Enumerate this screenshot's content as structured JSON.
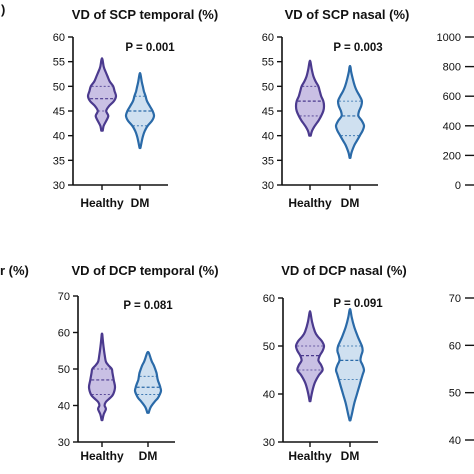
{
  "colors": {
    "healthy_fill": "#c9c0e4",
    "healthy_line": "#4b3a8e",
    "dm_fill": "#cfe0f0",
    "dm_line": "#2a6aa8",
    "axis": "#111111"
  },
  "fragments": {
    "panel_mark_top": ")",
    "left_label_bottom": "r (%)"
  },
  "chart_data": [
    {
      "type": "violin",
      "title": "VD of SCP temporal (%)",
      "annotation": "P = 0.001",
      "categories": [
        "Healthy",
        "DM"
      ],
      "ylim": [
        30,
        60
      ],
      "yticks": [
        30,
        35,
        40,
        45,
        50,
        55,
        60
      ],
      "series": [
        {
          "min": 41,
          "max": 55.5,
          "median": 47.5,
          "q1": 45,
          "q3": 50,
          "profile": [
            [
              41,
              0.05
            ],
            [
              42,
              0.12
            ],
            [
              43,
              0.3
            ],
            [
              44,
              0.45
            ],
            [
              45,
              0.3
            ],
            [
              46,
              0.5
            ],
            [
              47,
              0.85
            ],
            [
              48,
              1.0
            ],
            [
              49,
              0.9
            ],
            [
              50,
              0.8
            ],
            [
              51,
              0.55
            ],
            [
              52,
              0.4
            ],
            [
              53,
              0.25
            ],
            [
              54,
              0.12
            ],
            [
              55.5,
              0.03
            ]
          ]
        },
        {
          "min": 37.5,
          "max": 52.5,
          "median": 45,
          "q1": 42,
          "q3": 48,
          "profile": [
            [
              37.5,
              0.03
            ],
            [
              38.5,
              0.1
            ],
            [
              40,
              0.22
            ],
            [
              41,
              0.35
            ],
            [
              42,
              0.55
            ],
            [
              43,
              0.85
            ],
            [
              44,
              1.0
            ],
            [
              45,
              0.9
            ],
            [
              46,
              0.7
            ],
            [
              47,
              0.5
            ],
            [
              48,
              0.4
            ],
            [
              49,
              0.28
            ],
            [
              50,
              0.2
            ],
            [
              51,
              0.12
            ],
            [
              52.5,
              0.03
            ]
          ]
        }
      ]
    },
    {
      "type": "violin",
      "title": "VD of SCP nasal (%)",
      "annotation": "P = 0.003",
      "categories": [
        "Healthy",
        "DM"
      ],
      "ylim": [
        30,
        60
      ],
      "yticks": [
        30,
        35,
        40,
        45,
        50,
        55,
        60
      ],
      "series": [
        {
          "min": 40,
          "max": 55,
          "median": 47,
          "q1": 44,
          "q3": 50,
          "profile": [
            [
              40,
              0.05
            ],
            [
              41,
              0.15
            ],
            [
              42,
              0.35
            ],
            [
              43,
              0.6
            ],
            [
              44,
              0.8
            ],
            [
              45,
              0.95
            ],
            [
              46,
              1.0
            ],
            [
              47,
              0.95
            ],
            [
              48,
              0.8
            ],
            [
              49,
              0.7
            ],
            [
              50,
              0.6
            ],
            [
              51,
              0.4
            ],
            [
              52,
              0.25
            ],
            [
              53.5,
              0.12
            ],
            [
              55,
              0.03
            ]
          ]
        },
        {
          "min": 35.5,
          "max": 54,
          "median": 44,
          "q1": 40,
          "q3": 47,
          "profile": [
            [
              35.5,
              0.03
            ],
            [
              36.5,
              0.1
            ],
            [
              38,
              0.3
            ],
            [
              39,
              0.5
            ],
            [
              40,
              0.7
            ],
            [
              41,
              0.9
            ],
            [
              42,
              1.0
            ],
            [
              43,
              0.85
            ],
            [
              44,
              0.6
            ],
            [
              45,
              0.65
            ],
            [
              46,
              0.8
            ],
            [
              47,
              0.85
            ],
            [
              48,
              0.7
            ],
            [
              49,
              0.5
            ],
            [
              50,
              0.35
            ],
            [
              51.5,
              0.2
            ],
            [
              53,
              0.08
            ],
            [
              54,
              0.03
            ]
          ]
        }
      ]
    },
    {
      "type": "violin",
      "title": "",
      "annotation": "",
      "categories": [],
      "ylim": [
        0,
        1000
      ],
      "yticks": [
        0,
        200,
        400,
        600,
        800,
        1000
      ],
      "series": []
    },
    {
      "type": "violin",
      "title": "VD of DCP temporal (%)",
      "annotation": "P = 0.081",
      "categories": [
        "Healthy",
        "DM"
      ],
      "ylim": [
        30,
        70
      ],
      "yticks": [
        30,
        40,
        50,
        60,
        70
      ],
      "series": [
        {
          "min": 36,
          "max": 59.5,
          "median": 47,
          "q1": 43,
          "q3": 50,
          "profile": [
            [
              36,
              0.03
            ],
            [
              37.5,
              0.12
            ],
            [
              39,
              0.3
            ],
            [
              40,
              0.2
            ],
            [
              41,
              0.3
            ],
            [
              42,
              0.6
            ],
            [
              43,
              0.85
            ],
            [
              45,
              1.0
            ],
            [
              47,
              0.9
            ],
            [
              49,
              0.8
            ],
            [
              50,
              0.75
            ],
            [
              51,
              0.5
            ],
            [
              52,
              0.3
            ],
            [
              54,
              0.2
            ],
            [
              56,
              0.12
            ],
            [
              58,
              0.06
            ],
            [
              59.5,
              0.02
            ]
          ]
        },
        {
          "min": 38,
          "max": 54.5,
          "median": 45,
          "q1": 43,
          "q3": 48,
          "profile": [
            [
              38,
              0.05
            ],
            [
              39.5,
              0.2
            ],
            [
              41,
              0.5
            ],
            [
              42,
              0.75
            ],
            [
              43,
              0.9
            ],
            [
              44,
              1.0
            ],
            [
              45,
              0.95
            ],
            [
              46,
              0.85
            ],
            [
              47,
              0.75
            ],
            [
              48,
              0.7
            ],
            [
              49,
              0.65
            ],
            [
              50,
              0.55
            ],
            [
              51,
              0.45
            ],
            [
              52,
              0.3
            ],
            [
              53,
              0.2
            ],
            [
              54.5,
              0.05
            ]
          ]
        }
      ]
    },
    {
      "type": "violin",
      "title": "VD of DCP nasal (%)",
      "annotation": "P = 0.091",
      "categories": [
        "Healthy",
        "DM"
      ],
      "ylim": [
        30,
        60
      ],
      "yticks": [
        30,
        40,
        50,
        60
      ],
      "series": [
        {
          "min": 38.5,
          "max": 57,
          "median": 48,
          "q1": 45,
          "q3": 50,
          "profile": [
            [
              38.5,
              0.03
            ],
            [
              40,
              0.12
            ],
            [
              42,
              0.3
            ],
            [
              43,
              0.45
            ],
            [
              44,
              0.65
            ],
            [
              45,
              0.9
            ],
            [
              46,
              0.8
            ],
            [
              47,
              0.6
            ],
            [
              48,
              0.7
            ],
            [
              49,
              0.9
            ],
            [
              50,
              1.0
            ],
            [
              51,
              0.85
            ],
            [
              52,
              0.55
            ],
            [
              53,
              0.35
            ],
            [
              55,
              0.15
            ],
            [
              57,
              0.03
            ]
          ]
        },
        {
          "min": 34.5,
          "max": 57.5,
          "median": 47,
          "q1": 43,
          "q3": 50,
          "profile": [
            [
              34.5,
              0.03
            ],
            [
              36,
              0.15
            ],
            [
              38,
              0.3
            ],
            [
              40,
              0.5
            ],
            [
              42,
              0.7
            ],
            [
              44,
              0.9
            ],
            [
              45,
              1.0
            ],
            [
              46,
              0.9
            ],
            [
              47,
              0.75
            ],
            [
              48,
              0.8
            ],
            [
              49,
              0.9
            ],
            [
              50,
              0.85
            ],
            [
              51,
              0.7
            ],
            [
              52,
              0.55
            ],
            [
              54,
              0.3
            ],
            [
              56,
              0.12
            ],
            [
              57.5,
              0.03
            ]
          ]
        }
      ]
    },
    {
      "type": "violin",
      "title": "",
      "annotation": "",
      "categories": [],
      "ylim": [
        40,
        70
      ],
      "yticks": [
        40,
        50,
        60,
        70
      ],
      "series": []
    }
  ]
}
